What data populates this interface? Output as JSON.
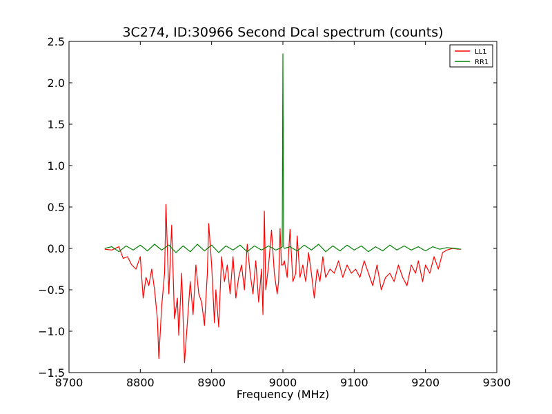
{
  "chart_data": {
    "type": "line",
    "title": "3C274, ID:30966 Second Dcal spectrum (counts)",
    "xlabel": "Frequency (MHz)",
    "ylabel": "",
    "xlim": [
      8700,
      9300
    ],
    "ylim": [
      -1.5,
      2.5
    ],
    "xticks": [
      8700,
      8800,
      8900,
      9000,
      9100,
      9200,
      9300
    ],
    "xtick_labels": [
      "8700",
      "8800",
      "8900",
      "9000",
      "9100",
      "9200",
      "9300"
    ],
    "yticks": [
      -1.5,
      -1.0,
      -0.5,
      0.0,
      0.5,
      1.0,
      1.5,
      2.0,
      2.5
    ],
    "ytick_labels": [
      "−1.5",
      "−1.0",
      "−0.5",
      "0.0",
      "0.5",
      "1.0",
      "1.5",
      "2.0",
      "2.5"
    ],
    "grid": false,
    "legend_position": "top-right",
    "series": [
      {
        "name": "LL1",
        "color": "#ff0000",
        "x": [
          8750,
          8760,
          8770,
          8776,
          8782,
          8788,
          8794,
          8800,
          8804,
          8808,
          8812,
          8816,
          8820,
          8824,
          8826,
          8830,
          8834,
          8836,
          8840,
          8844,
          8848,
          8852,
          8854,
          8858,
          8862,
          8866,
          8870,
          8874,
          8878,
          8882,
          8886,
          8890,
          8894,
          8896,
          8900,
          8904,
          8906,
          8910,
          8914,
          8918,
          8922,
          8926,
          8930,
          8934,
          8938,
          8942,
          8946,
          8950,
          8954,
          8958,
          8962,
          8966,
          8970,
          8972,
          8974,
          8976,
          8980,
          8984,
          8988,
          8992,
          8994,
          8996,
          8998,
          9000,
          9002,
          9006,
          9010,
          9014,
          9018,
          9020,
          9024,
          9028,
          9032,
          9036,
          9040,
          9044,
          9048,
          9052,
          9056,
          9060,
          9066,
          9072,
          9078,
          9084,
          9090,
          9096,
          9102,
          9108,
          9114,
          9120,
          9126,
          9132,
          9138,
          9144,
          9150,
          9156,
          9162,
          9168,
          9174,
          9180,
          9186,
          9190,
          9196,
          9200,
          9206,
          9212,
          9218,
          9224,
          9230,
          9238,
          9246,
          9250
        ],
        "y": [
          -0.01,
          -0.02,
          0.02,
          -0.12,
          -0.1,
          -0.2,
          -0.25,
          -0.1,
          -0.6,
          -0.35,
          -0.45,
          -0.25,
          -0.5,
          -0.85,
          -1.33,
          -0.7,
          -0.3,
          0.53,
          -0.55,
          0.28,
          -0.85,
          -0.6,
          -1.05,
          -0.3,
          -1.38,
          -0.9,
          -0.4,
          -0.8,
          -0.2,
          -0.55,
          -0.65,
          -0.93,
          -0.3,
          0.3,
          -0.2,
          -0.9,
          -0.5,
          -0.95,
          -0.1,
          -0.4,
          -0.2,
          -0.55,
          -0.1,
          -0.6,
          -0.35,
          -0.2,
          -0.5,
          0.05,
          -0.3,
          -0.55,
          -0.15,
          -0.65,
          -0.25,
          -0.8,
          0.45,
          -0.5,
          -0.2,
          0.22,
          -0.3,
          -0.55,
          -0.4,
          0.24,
          -0.2,
          -0.2,
          -0.15,
          -0.35,
          0.23,
          -0.4,
          -0.3,
          0.15,
          -0.35,
          -0.2,
          -0.4,
          -0.05,
          -0.3,
          -0.6,
          -0.25,
          -0.4,
          -0.1,
          -0.35,
          -0.25,
          -0.3,
          -0.15,
          -0.35,
          -0.2,
          -0.3,
          -0.25,
          -0.35,
          -0.15,
          -0.3,
          -0.45,
          -0.2,
          -0.5,
          -0.35,
          -0.3,
          -0.4,
          -0.2,
          -0.35,
          -0.45,
          -0.2,
          -0.3,
          -0.15,
          -0.4,
          -0.2,
          -0.3,
          -0.1,
          -0.25,
          -0.05,
          -0.02,
          0.0,
          -0.01,
          -0.01
        ]
      },
      {
        "name": "RR1",
        "color": "#008000",
        "x": [
          8750,
          8760,
          8770,
          8780,
          8790,
          8800,
          8810,
          8820,
          8830,
          8840,
          8850,
          8860,
          8870,
          8880,
          8890,
          8900,
          8910,
          8920,
          8930,
          8940,
          8950,
          8960,
          8970,
          8980,
          8990,
          8998,
          8999,
          9000,
          9001,
          9002,
          9010,
          9020,
          9030,
          9040,
          9050,
          9060,
          9070,
          9080,
          9090,
          9100,
          9110,
          9120,
          9130,
          9140,
          9150,
          9160,
          9170,
          9180,
          9190,
          9200,
          9210,
          9220,
          9230,
          9240,
          9250
        ],
        "y": [
          0.0,
          0.02,
          -0.04,
          0.03,
          -0.02,
          0.04,
          -0.03,
          0.05,
          -0.02,
          0.04,
          -0.05,
          0.03,
          -0.04,
          0.05,
          -0.03,
          0.04,
          -0.05,
          0.03,
          -0.02,
          0.04,
          -0.04,
          0.03,
          -0.02,
          0.03,
          -0.02,
          0.01,
          0.02,
          2.35,
          0.02,
          0.0,
          0.02,
          -0.03,
          0.04,
          -0.02,
          0.05,
          -0.04,
          0.03,
          -0.03,
          0.04,
          -0.02,
          0.03,
          -0.04,
          0.02,
          -0.03,
          0.04,
          -0.02,
          0.03,
          -0.02,
          0.02,
          -0.03,
          0.02,
          -0.01,
          0.01,
          0.0,
          -0.01
        ]
      }
    ]
  }
}
